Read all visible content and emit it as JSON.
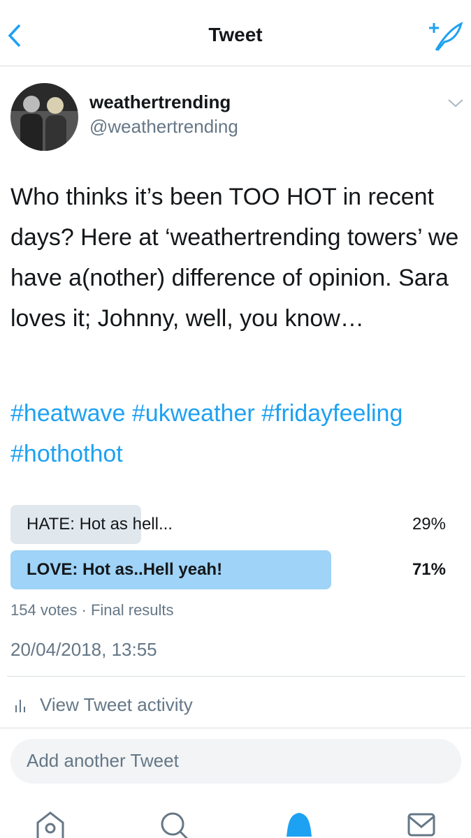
{
  "header": {
    "title": "Tweet"
  },
  "tweet": {
    "name": "weathertrending",
    "handle": "@weathertrending",
    "text": "Who thinks it’s been TOO HOT in recent days? Here at ‘weathertrending towers’ we have a(nother) difference of opinion. Sara loves it; Johnny, well, you know…",
    "hashtags": "#heatwave #ukweather #fridayfeeling #hothothot",
    "poll": {
      "options": [
        {
          "text": "HATE: Hot as hell...",
          "value": 29,
          "value_label": "29%"
        },
        {
          "text": "LOVE: Hot as..Hell yeah!",
          "value": 71,
          "value_label": "71%"
        }
      ],
      "meta": "154 votes · Final results"
    },
    "timestamp": "20/04/2018, 13:55",
    "activity": "View Tweet activity"
  },
  "reply": {
    "placeholder": "Add another Tweet"
  }
}
